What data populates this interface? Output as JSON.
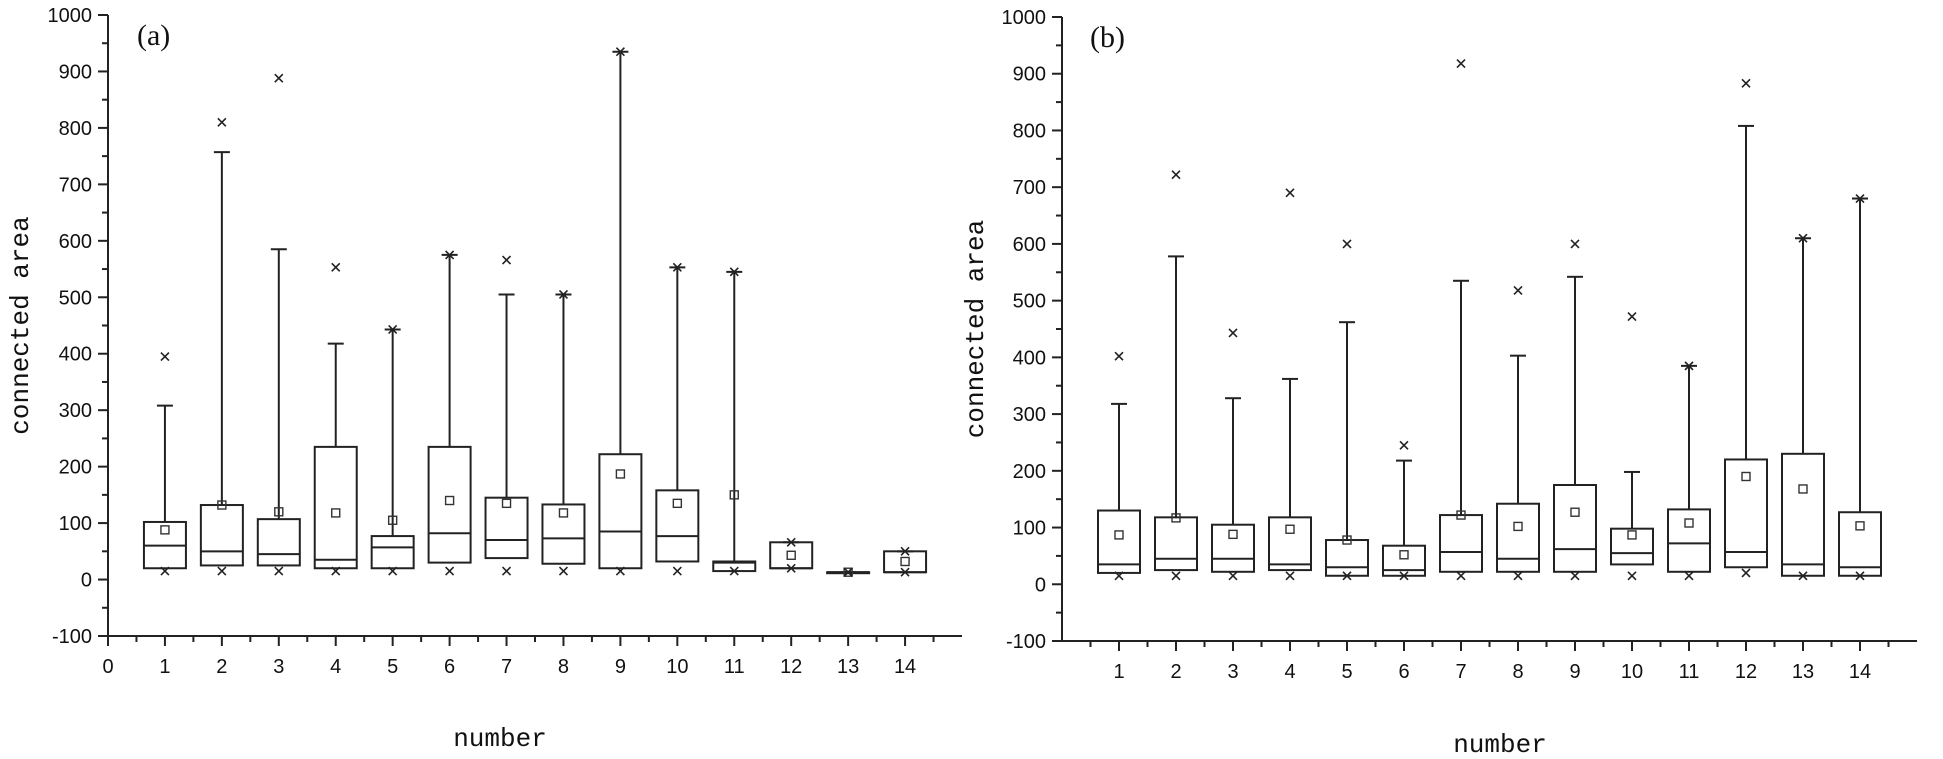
{
  "chart_data": [
    {
      "type": "box",
      "panel_label": "(a)",
      "xlabel": "number",
      "ylabel": "connected area",
      "ylim": [
        -100,
        1000
      ],
      "yticks": [
        -100,
        0,
        100,
        200,
        300,
        400,
        500,
        600,
        700,
        800,
        900,
        1000
      ],
      "xlim": [
        0,
        15
      ],
      "xticks": [
        "0",
        "1",
        "2",
        "3",
        "4",
        "5",
        "6",
        "7",
        "8",
        "9",
        "10",
        "11",
        "12",
        "13",
        "14"
      ],
      "series": [
        {
          "x": 1,
          "q1": 20,
          "median": 60,
          "q3": 102,
          "whisker_low": 20,
          "whisker_high": 308,
          "mean": 88,
          "max_marker": 395,
          "min_marker": 15
        },
        {
          "x": 2,
          "q1": 25,
          "median": 50,
          "q3": 132,
          "whisker_low": 25,
          "whisker_high": 757,
          "mean": 132,
          "max_marker": 810,
          "min_marker": 15
        },
        {
          "x": 3,
          "q1": 25,
          "median": 45,
          "q3": 107,
          "whisker_low": 25,
          "whisker_high": 585,
          "mean": 120,
          "max_marker": 888,
          "min_marker": 15
        },
        {
          "x": 4,
          "q1": 20,
          "median": 35,
          "q3": 235,
          "whisker_low": 20,
          "whisker_high": 418,
          "mean": 118,
          "max_marker": 553,
          "min_marker": 15
        },
        {
          "x": 5,
          "q1": 20,
          "median": 57,
          "q3": 77,
          "whisker_low": 20,
          "whisker_high": 443,
          "mean": 105,
          "max_marker": 443,
          "min_marker": 15
        },
        {
          "x": 6,
          "q1": 30,
          "median": 82,
          "q3": 235,
          "whisker_low": 30,
          "whisker_high": 575,
          "mean": 140,
          "max_marker": 575,
          "min_marker": 15
        },
        {
          "x": 7,
          "q1": 38,
          "median": 70,
          "q3": 145,
          "whisker_low": 38,
          "whisker_high": 505,
          "mean": 135,
          "max_marker": 566,
          "min_marker": 15
        },
        {
          "x": 8,
          "q1": 28,
          "median": 73,
          "q3": 133,
          "whisker_low": 28,
          "whisker_high": 505,
          "mean": 118,
          "max_marker": 505,
          "min_marker": 15
        },
        {
          "x": 9,
          "q1": 20,
          "median": 85,
          "q3": 222,
          "whisker_low": 20,
          "whisker_high": 935,
          "mean": 187,
          "max_marker": 935,
          "min_marker": 15
        },
        {
          "x": 10,
          "q1": 32,
          "median": 77,
          "q3": 158,
          "whisker_low": 32,
          "whisker_high": 553,
          "mean": 135,
          "max_marker": 553,
          "min_marker": 15
        },
        {
          "x": 11,
          "q1": 15,
          "median": 30,
          "q3": 32,
          "whisker_low": 15,
          "whisker_high": 545,
          "mean": 150,
          "max_marker": 545,
          "min_marker": 15
        },
        {
          "x": 12,
          "q1": 20,
          "median": 20,
          "q3": 66,
          "whisker_low": 20,
          "whisker_high": 66,
          "mean": 43,
          "max_marker": 66,
          "min_marker": 20
        },
        {
          "x": 13,
          "q1": 13,
          "median": 13,
          "q3": 13,
          "whisker_low": 13,
          "whisker_high": 13,
          "mean": 13,
          "max_marker": 13,
          "min_marker": 13
        },
        {
          "x": 14,
          "q1": 13,
          "median": 13,
          "q3": 50,
          "whisker_low": 13,
          "whisker_high": 50,
          "mean": 32,
          "max_marker": 50,
          "min_marker": 13
        }
      ]
    },
    {
      "type": "box",
      "panel_label": "(b)",
      "xlabel": "number",
      "ylabel": "connected area",
      "ylim": [
        -100,
        1000
      ],
      "yticks": [
        -100,
        0,
        100,
        200,
        300,
        400,
        500,
        600,
        700,
        800,
        900,
        1000
      ],
      "xlim": [
        0,
        15
      ],
      "xticks": [
        "1",
        "2",
        "3",
        "4",
        "5",
        "6",
        "7",
        "8",
        "9",
        "10",
        "11",
        "12",
        "13",
        "14"
      ],
      "series": [
        {
          "x": 1,
          "q1": 20,
          "median": 35,
          "q3": 130,
          "whisker_low": 20,
          "whisker_high": 318,
          "mean": 87,
          "max_marker": 402,
          "min_marker": 15
        },
        {
          "x": 2,
          "q1": 25,
          "median": 45,
          "q3": 118,
          "whisker_low": 25,
          "whisker_high": 578,
          "mean": 117,
          "max_marker": 722,
          "min_marker": 15
        },
        {
          "x": 3,
          "q1": 22,
          "median": 45,
          "q3": 105,
          "whisker_low": 22,
          "whisker_high": 328,
          "mean": 88,
          "max_marker": 443,
          "min_marker": 15
        },
        {
          "x": 4,
          "q1": 25,
          "median": 35,
          "q3": 118,
          "whisker_low": 25,
          "whisker_high": 362,
          "mean": 97,
          "max_marker": 690,
          "min_marker": 15
        },
        {
          "x": 5,
          "q1": 15,
          "median": 30,
          "q3": 78,
          "whisker_low": 15,
          "whisker_high": 462,
          "mean": 78,
          "max_marker": 600,
          "min_marker": 15
        },
        {
          "x": 6,
          "q1": 15,
          "median": 25,
          "q3": 68,
          "whisker_low": 15,
          "whisker_high": 218,
          "mean": 52,
          "max_marker": 245,
          "min_marker": 15
        },
        {
          "x": 7,
          "q1": 22,
          "median": 57,
          "q3": 122,
          "whisker_low": 22,
          "whisker_high": 535,
          "mean": 122,
          "max_marker": 918,
          "min_marker": 15
        },
        {
          "x": 8,
          "q1": 22,
          "median": 45,
          "q3": 142,
          "whisker_low": 22,
          "whisker_high": 403,
          "mean": 102,
          "max_marker": 518,
          "min_marker": 15
        },
        {
          "x": 9,
          "q1": 22,
          "median": 62,
          "q3": 175,
          "whisker_low": 22,
          "whisker_high": 542,
          "mean": 127,
          "max_marker": 600,
          "min_marker": 15
        },
        {
          "x": 10,
          "q1": 35,
          "median": 55,
          "q3": 98,
          "whisker_low": 35,
          "whisker_high": 198,
          "mean": 87,
          "max_marker": 472,
          "min_marker": 15
        },
        {
          "x": 11,
          "q1": 22,
          "median": 72,
          "q3": 132,
          "whisker_low": 22,
          "whisker_high": 385,
          "mean": 108,
          "max_marker": 385,
          "min_marker": 15
        },
        {
          "x": 12,
          "q1": 30,
          "median": 57,
          "q3": 220,
          "whisker_low": 30,
          "whisker_high": 808,
          "mean": 190,
          "max_marker": 883,
          "min_marker": 20
        },
        {
          "x": 13,
          "q1": 15,
          "median": 35,
          "q3": 230,
          "whisker_low": 15,
          "whisker_high": 610,
          "mean": 168,
          "max_marker": 610,
          "min_marker": 15
        },
        {
          "x": 14,
          "q1": 15,
          "median": 30,
          "q3": 127,
          "whisker_low": 15,
          "whisker_high": 680,
          "mean": 103,
          "max_marker": 680,
          "min_marker": 15
        }
      ]
    }
  ]
}
